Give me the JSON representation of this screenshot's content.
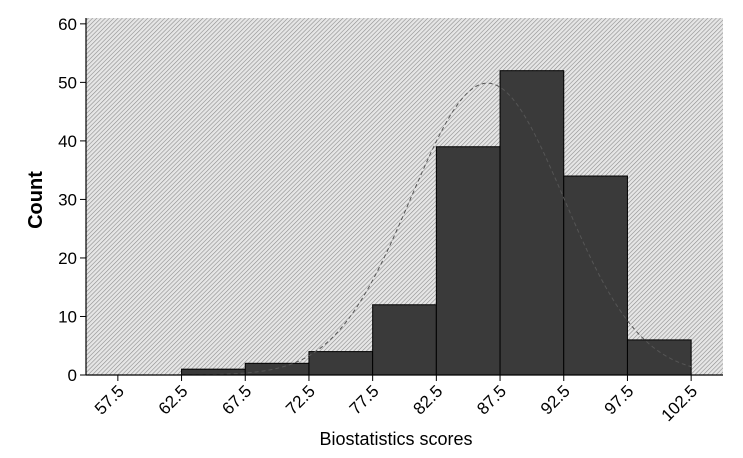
{
  "chart_data": {
    "type": "bar",
    "title": "",
    "xlabel": "Biostatistics scores",
    "ylabel": "Count",
    "x_ticks": [
      "57.5",
      "62.5",
      "67.5",
      "72.5",
      "77.5",
      "82.5",
      "87.5",
      "92.5",
      "97.5",
      "102.5"
    ],
    "y_ticks": [
      "0",
      "10",
      "20",
      "30",
      "40",
      "50",
      "60"
    ],
    "xlim": [
      55,
      105
    ],
    "ylim": [
      0,
      61
    ],
    "bins": [
      {
        "start": 57.5,
        "end": 62.5,
        "count": 0
      },
      {
        "start": 62.5,
        "end": 67.5,
        "count": 1
      },
      {
        "start": 67.5,
        "end": 72.5,
        "count": 2
      },
      {
        "start": 72.5,
        "end": 77.5,
        "count": 4
      },
      {
        "start": 77.5,
        "end": 82.5,
        "count": 12
      },
      {
        "start": 82.5,
        "end": 87.5,
        "count": 39
      },
      {
        "start": 87.5,
        "end": 92.5,
        "count": 52
      },
      {
        "start": 92.5,
        "end": 97.5,
        "count": 34
      },
      {
        "start": 97.5,
        "end": 102.5,
        "count": 6
      }
    ],
    "normal_curve": {
      "mean": 86.5,
      "sd": 6.0,
      "n": 150,
      "bin_width": 5,
      "style": "dashed"
    },
    "grid": false,
    "background": "hatched",
    "colors": {
      "bar_fill": "#3a3a3a",
      "bar_edge": "#000000",
      "background_light": "#e6e6e6",
      "background_dark": "#8c8c8c",
      "curve": "#555555"
    }
  }
}
